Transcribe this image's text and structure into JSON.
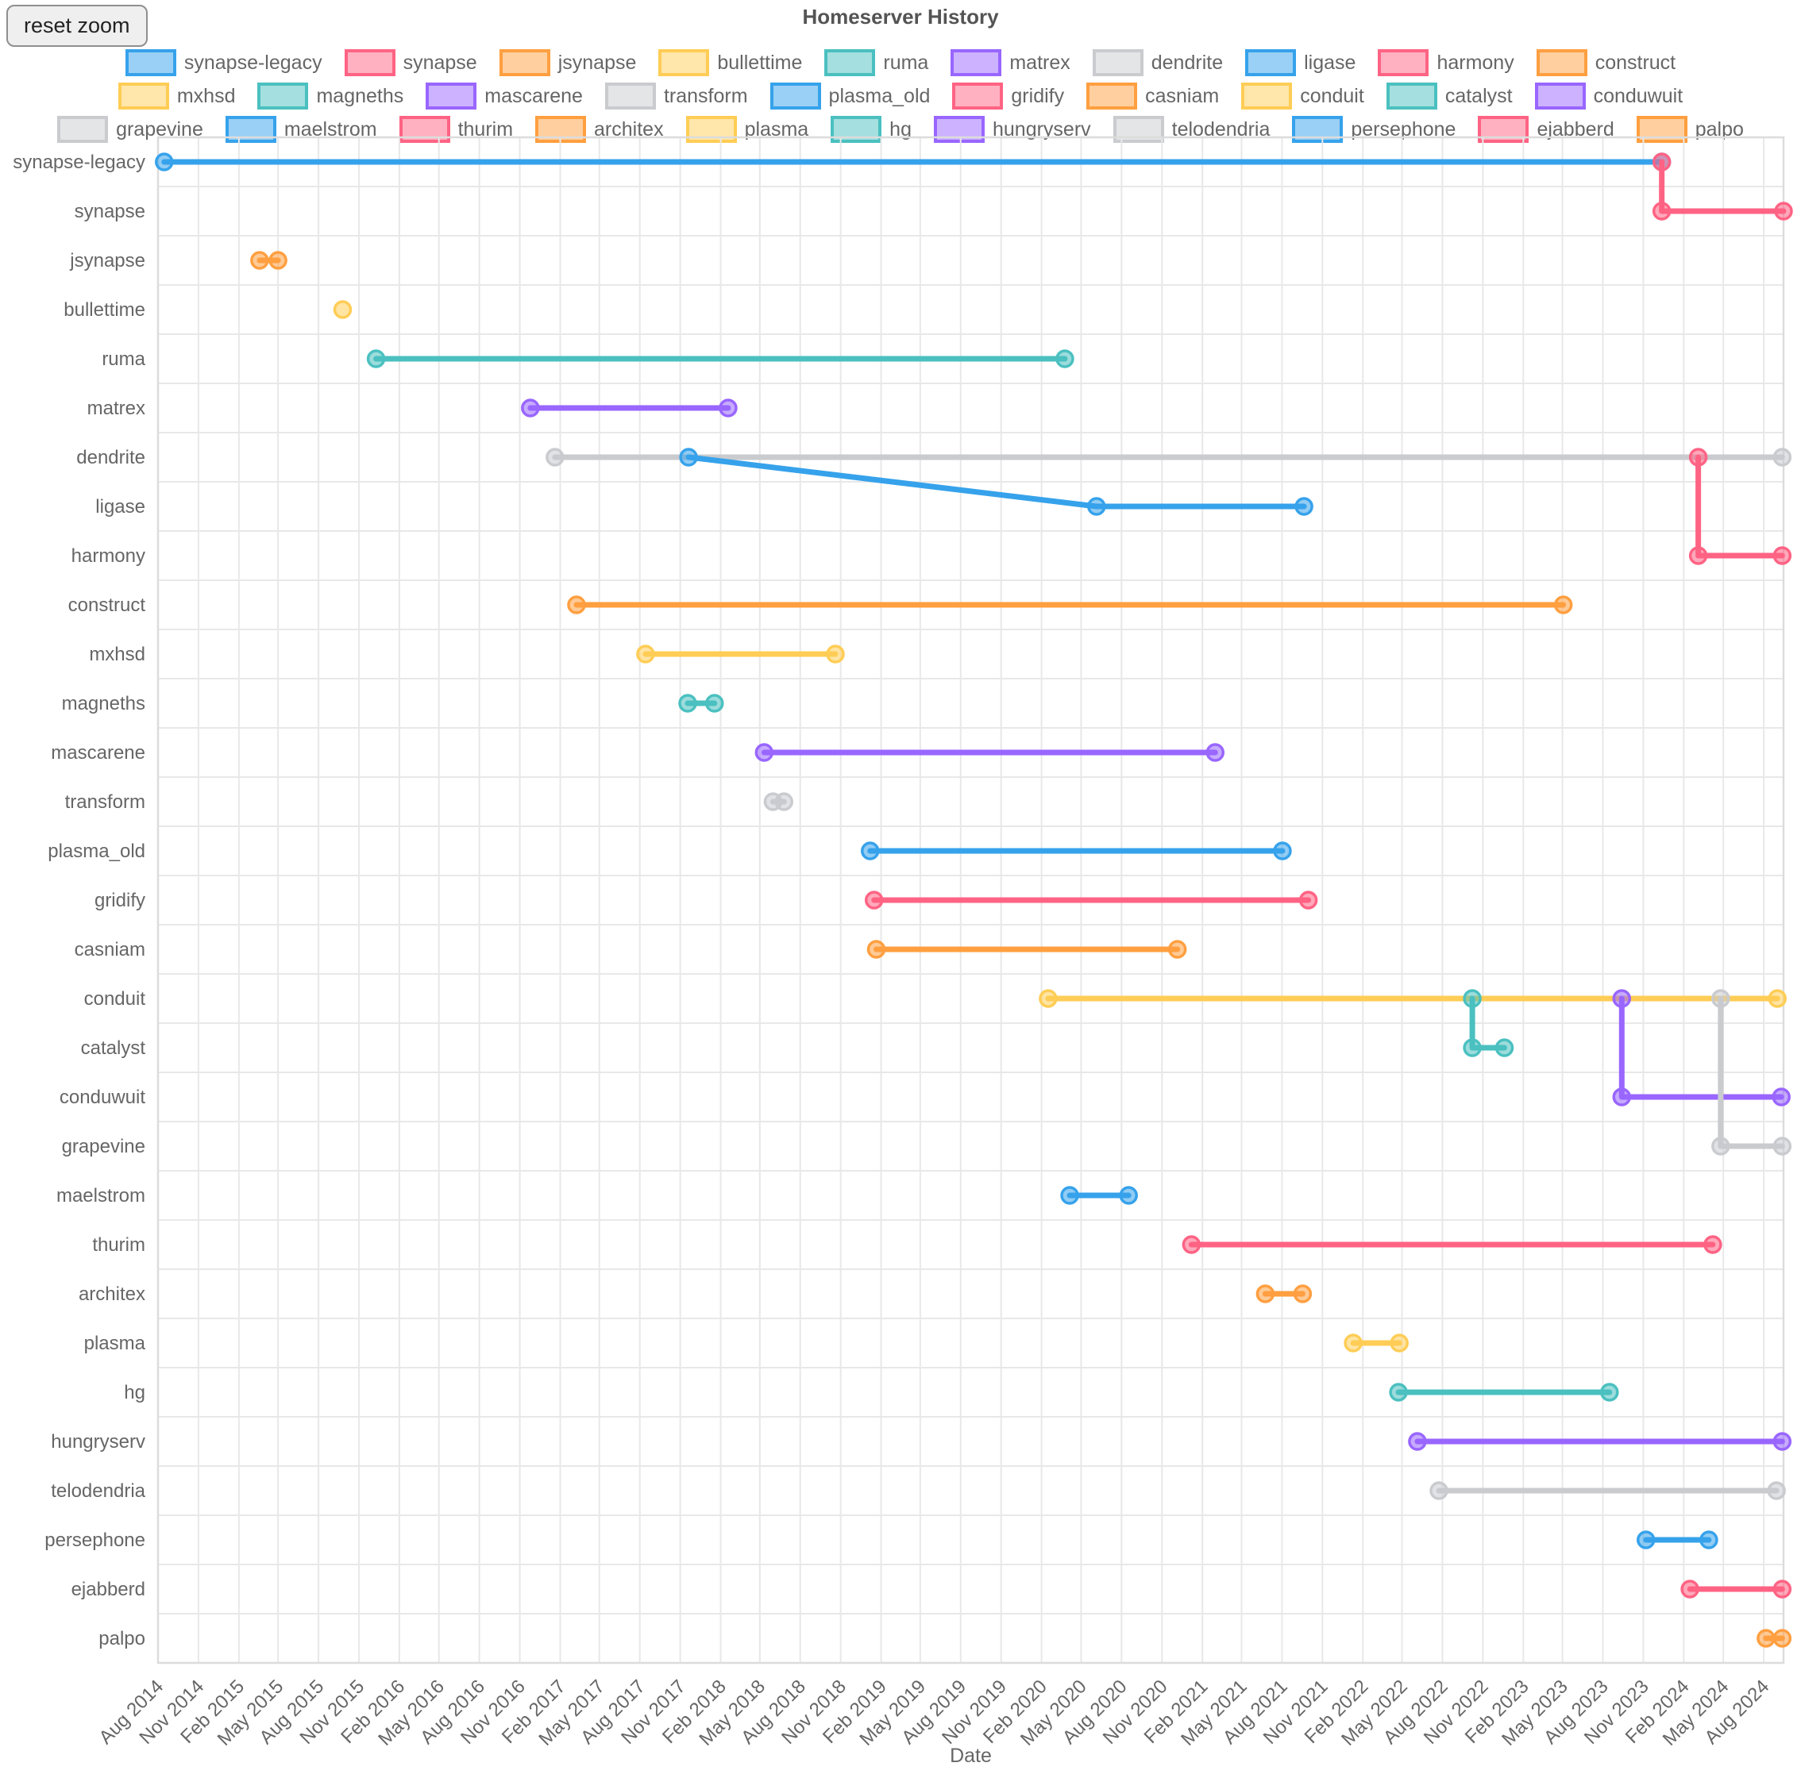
{
  "toolbar": {
    "reset_zoom_label": "reset zoom"
  },
  "chart_data": {
    "type": "line",
    "title": "Homeserver History",
    "xlabel": "Date",
    "legend_position": "top",
    "grid": true,
    "legend_rows": [
      10,
      10,
      11
    ],
    "x_range": [
      "2014-08-01",
      "2024-09-15"
    ],
    "x_ticks": [
      "Aug 2014",
      "Nov 2014",
      "Feb 2015",
      "May 2015",
      "Aug 2015",
      "Nov 2015",
      "Feb 2016",
      "May 2016",
      "Aug 2016",
      "Nov 2016",
      "Feb 2017",
      "May 2017",
      "Aug 2017",
      "Nov 2017",
      "Feb 2018",
      "May 2018",
      "Aug 2018",
      "Nov 2018",
      "Feb 2019",
      "May 2019",
      "Aug 2019",
      "Nov 2019",
      "Feb 2020",
      "May 2020",
      "Aug 2020",
      "Nov 2020",
      "Feb 2021",
      "May 2021",
      "Aug 2021",
      "Nov 2021",
      "Feb 2022",
      "May 2022",
      "Aug 2022",
      "Nov 2022",
      "Feb 2023",
      "May 2023",
      "Aug 2023",
      "Nov 2023",
      "Feb 2024",
      "May 2024",
      "Aug 2024"
    ],
    "rows": [
      "synapse-legacy",
      "synapse",
      "jsynapse",
      "bullettime",
      "ruma",
      "matrex",
      "dendrite",
      "ligase",
      "harmony",
      "construct",
      "mxhsd",
      "magneths",
      "mascarene",
      "transform",
      "plasma_old",
      "gridify",
      "casniam",
      "conduit",
      "catalyst",
      "conduwuit",
      "grapevine",
      "maelstrom",
      "thurim",
      "architex",
      "plasma",
      "hg",
      "hungryserv",
      "telodendria",
      "persephone",
      "ejabberd",
      "palpo"
    ],
    "palette": {
      "blue": "#36A2EB",
      "pink": "#FF6384",
      "orange": "#FF9F40",
      "yellow": "#FFCD56",
      "teal": "#4BC0C0",
      "purple": "#9966FF",
      "grey": "#C9CBCF"
    },
    "series": [
      {
        "name": "synapse-legacy",
        "color": "#36A2EB",
        "points": [
          [
            "2014-08-15",
            "synapse-legacy"
          ],
          [
            "2023-12-13",
            "synapse-legacy"
          ]
        ]
      },
      {
        "name": "synapse",
        "color": "#FF6384",
        "points": [
          [
            "2023-12-13",
            "synapse-legacy"
          ],
          [
            "2023-12-13",
            "synapse"
          ],
          [
            "2024-09-15",
            "synapse"
          ]
        ]
      },
      {
        "name": "jsynapse",
        "color": "#FF9F40",
        "points": [
          [
            "2015-03-20",
            "jsynapse"
          ],
          [
            "2015-05-01",
            "jsynapse"
          ]
        ]
      },
      {
        "name": "bullettime",
        "color": "#FFCD56",
        "points": [
          [
            "2015-09-25",
            "bullettime"
          ]
        ]
      },
      {
        "name": "ruma",
        "color": "#4BC0C0",
        "points": [
          [
            "2015-12-10",
            "ruma"
          ],
          [
            "2020-03-25",
            "ruma"
          ]
        ]
      },
      {
        "name": "matrex",
        "color": "#9966FF",
        "points": [
          [
            "2016-11-25",
            "matrex"
          ],
          [
            "2018-02-18",
            "matrex"
          ]
        ]
      },
      {
        "name": "dendrite",
        "color": "#C9CBCF",
        "points": [
          [
            "2017-01-20",
            "dendrite"
          ],
          [
            "2024-09-12",
            "dendrite"
          ]
        ]
      },
      {
        "name": "ligase",
        "color": "#36A2EB",
        "points": [
          [
            "2017-11-20",
            "dendrite"
          ],
          [
            "2020-06-05",
            "ligase"
          ],
          [
            "2021-09-20",
            "ligase"
          ]
        ]
      },
      {
        "name": "harmony",
        "color": "#FF6384",
        "points": [
          [
            "2024-03-05",
            "dendrite"
          ],
          [
            "2024-03-05",
            "harmony"
          ],
          [
            "2024-09-12",
            "harmony"
          ]
        ]
      },
      {
        "name": "construct",
        "color": "#FF9F40",
        "points": [
          [
            "2017-03-10",
            "construct"
          ],
          [
            "2023-05-03",
            "construct"
          ]
        ]
      },
      {
        "name": "mxhsd",
        "color": "#FFCD56",
        "points": [
          [
            "2017-08-14",
            "mxhsd"
          ],
          [
            "2018-10-20",
            "mxhsd"
          ]
        ]
      },
      {
        "name": "magneths",
        "color": "#4BC0C0",
        "points": [
          [
            "2017-11-18",
            "magneths"
          ],
          [
            "2018-01-18",
            "magneths"
          ]
        ]
      },
      {
        "name": "mascarene",
        "color": "#9966FF",
        "points": [
          [
            "2018-05-11",
            "mascarene"
          ],
          [
            "2021-03-02",
            "mascarene"
          ]
        ]
      },
      {
        "name": "transform",
        "color": "#C9CBCF",
        "points": [
          [
            "2018-05-31",
            "transform"
          ],
          [
            "2018-06-25",
            "transform"
          ]
        ]
      },
      {
        "name": "plasma_old",
        "color": "#36A2EB",
        "points": [
          [
            "2019-01-07",
            "plasma_old"
          ],
          [
            "2021-08-02",
            "plasma_old"
          ]
        ]
      },
      {
        "name": "gridify",
        "color": "#FF6384",
        "points": [
          [
            "2019-01-16",
            "gridify"
          ],
          [
            "2021-09-30",
            "gridify"
          ]
        ]
      },
      {
        "name": "casniam",
        "color": "#FF9F40",
        "points": [
          [
            "2019-01-21",
            "casniam"
          ],
          [
            "2020-12-06",
            "casniam"
          ]
        ]
      },
      {
        "name": "conduit",
        "color": "#FFCD56",
        "points": [
          [
            "2020-02-16",
            "conduit"
          ],
          [
            "2024-09-01",
            "conduit"
          ]
        ]
      },
      {
        "name": "catalyst",
        "color": "#4BC0C0",
        "points": [
          [
            "2022-10-08",
            "conduit"
          ],
          [
            "2022-10-08",
            "catalyst"
          ],
          [
            "2022-12-20",
            "catalyst"
          ]
        ]
      },
      {
        "name": "conduwuit",
        "color": "#9966FF",
        "points": [
          [
            "2023-09-13",
            "conduit"
          ],
          [
            "2023-09-13",
            "conduwuit"
          ],
          [
            "2024-09-10",
            "conduwuit"
          ]
        ]
      },
      {
        "name": "grapevine",
        "color": "#C9CBCF",
        "points": [
          [
            "2024-04-25",
            "conduit"
          ],
          [
            "2024-04-25",
            "grapevine"
          ],
          [
            "2024-09-12",
            "grapevine"
          ]
        ]
      },
      {
        "name": "maelstrom",
        "color": "#36A2EB",
        "points": [
          [
            "2020-04-05",
            "maelstrom"
          ],
          [
            "2020-08-17",
            "maelstrom"
          ]
        ]
      },
      {
        "name": "thurim",
        "color": "#FF6384",
        "points": [
          [
            "2021-01-07",
            "thurim"
          ],
          [
            "2024-04-07",
            "thurim"
          ]
        ]
      },
      {
        "name": "architex",
        "color": "#FF9F40",
        "points": [
          [
            "2021-06-24",
            "architex"
          ],
          [
            "2021-09-17",
            "architex"
          ]
        ]
      },
      {
        "name": "plasma",
        "color": "#FFCD56",
        "points": [
          [
            "2022-01-10",
            "plasma"
          ],
          [
            "2022-04-25",
            "plasma"
          ]
        ]
      },
      {
        "name": "hg",
        "color": "#4BC0C0",
        "points": [
          [
            "2022-04-23",
            "hg"
          ],
          [
            "2023-08-16",
            "hg"
          ]
        ]
      },
      {
        "name": "hungryserv",
        "color": "#9966FF",
        "points": [
          [
            "2022-06-05",
            "hungryserv"
          ],
          [
            "2024-09-12",
            "hungryserv"
          ]
        ]
      },
      {
        "name": "telodendria",
        "color": "#C9CBCF",
        "points": [
          [
            "2022-07-24",
            "telodendria"
          ],
          [
            "2024-08-30",
            "telodendria"
          ]
        ]
      },
      {
        "name": "persephone",
        "color": "#36A2EB",
        "points": [
          [
            "2023-11-07",
            "persephone"
          ],
          [
            "2024-03-29",
            "persephone"
          ]
        ]
      },
      {
        "name": "ejabberd",
        "color": "#FF6384",
        "points": [
          [
            "2024-02-15",
            "ejabberd"
          ],
          [
            "2024-09-12",
            "ejabberd"
          ]
        ]
      },
      {
        "name": "palpo",
        "color": "#FF9F40",
        "points": [
          [
            "2024-08-06",
            "palpo"
          ],
          [
            "2024-09-12",
            "palpo"
          ]
        ]
      }
    ]
  }
}
